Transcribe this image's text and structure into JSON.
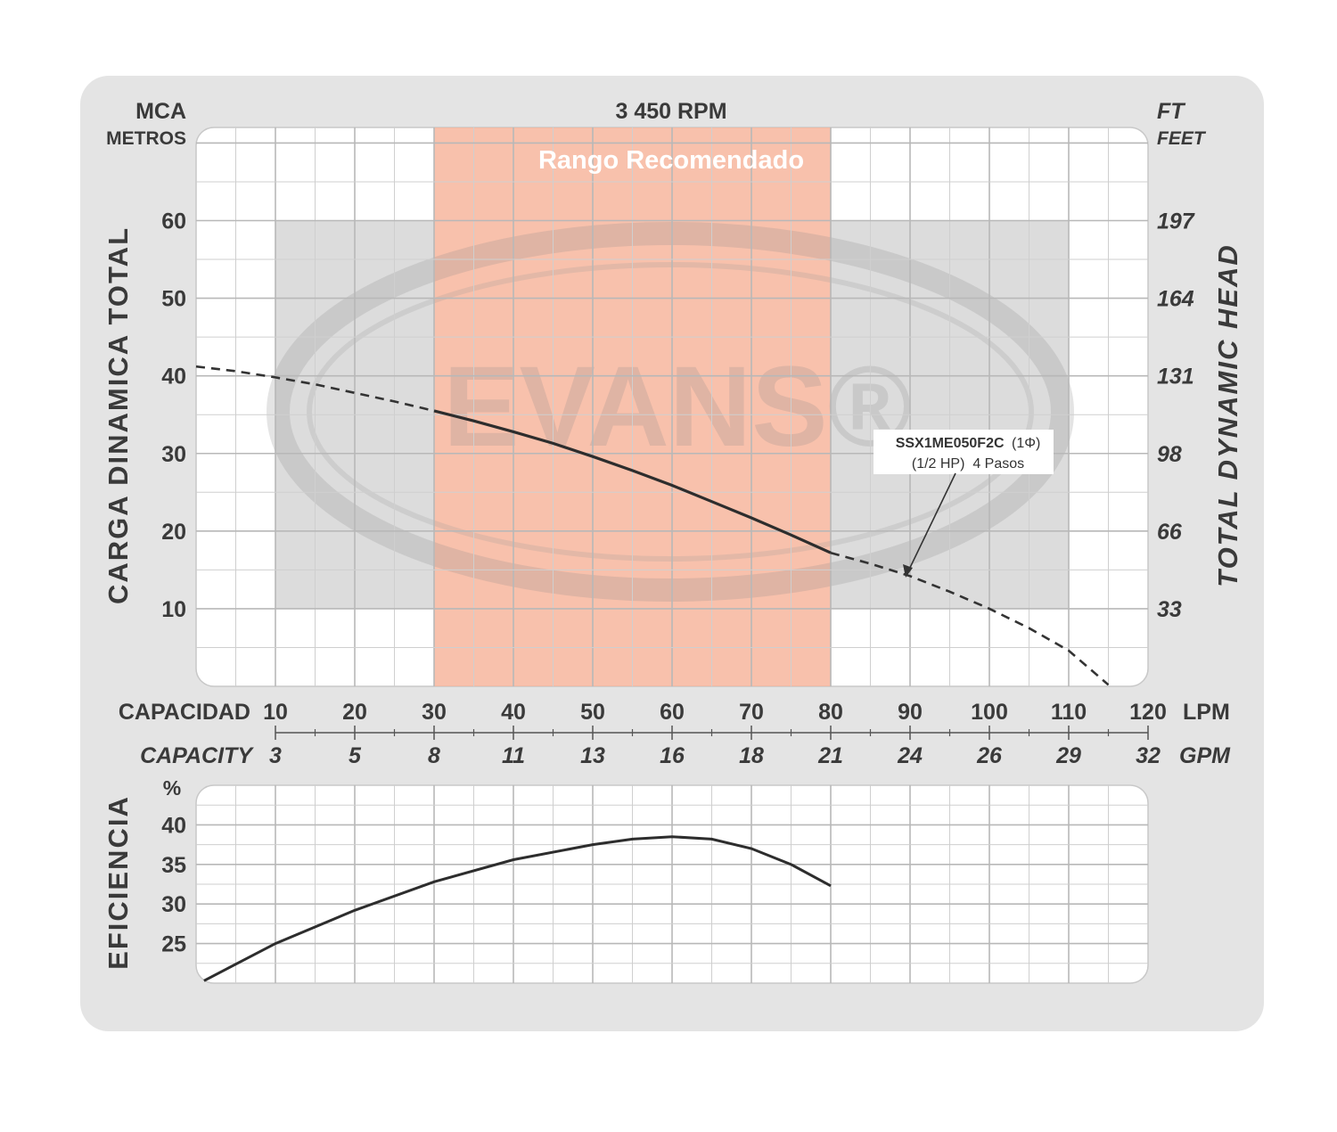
{
  "chart_data": [
    {
      "type": "line",
      "title": "3 450 RPM",
      "left_unit": "MCA",
      "left_unit_sub": "METROS",
      "right_unit": "FT",
      "right_unit_sub": "FEET",
      "ylabel": "CARGA DINAMICA TOTAL",
      "ylabel_right": "TOTAL DYNAMIC HEAD",
      "ylim": [
        0,
        72
      ],
      "y_ticks": [
        10,
        20,
        30,
        40,
        50,
        60
      ],
      "y_ticks_right": [
        "33",
        "66",
        "98",
        "131",
        "164",
        "197"
      ],
      "xlim": [
        0,
        120
      ],
      "x_ticks": [
        10,
        20,
        30,
        40,
        50,
        60,
        70,
        80,
        90,
        100,
        110,
        120
      ],
      "x_unit": "LPM",
      "xlabel": "CAPACIDAD",
      "xlabel_secondary": "CAPACITY",
      "x_ticks_secondary": [
        "3",
        "5",
        "8",
        "11",
        "13",
        "16",
        "18",
        "21",
        "24",
        "26",
        "29",
        "32"
      ],
      "x_unit_secondary": "GPM",
      "recommended_range": {
        "label": "Rango Recomendado",
        "x": [
          30,
          80
        ]
      },
      "grid": true,
      "watermark": "EVANS®",
      "annotation": {
        "model": "SSX1ME050F2C",
        "phase": "(1Φ)",
        "detail": "(1/2 HP)  4 Pasos",
        "points_to": [
          90,
          14.5
        ]
      },
      "series": [
        {
          "x": [
            0,
            5,
            10,
            15,
            20,
            25,
            30,
            35,
            40,
            45,
            50,
            55,
            60,
            65,
            70,
            75,
            80,
            85,
            90,
            95,
            100,
            105,
            110,
            115
          ],
          "y": [
            41.2,
            40.6,
            39.8,
            38.9,
            37.8,
            36.7,
            35.5,
            34.2,
            32.8,
            31.3,
            29.6,
            27.8,
            25.9,
            23.8,
            21.7,
            19.5,
            17.2,
            15.8,
            14.2,
            12.2,
            10.0,
            7.5,
            4.6,
            0.2
          ],
          "solid_range": [
            30,
            80
          ]
        }
      ]
    },
    {
      "type": "line",
      "ylabel": "EFICIENCIA",
      "y_unit": "%",
      "ylim": [
        20,
        45
      ],
      "y_ticks": [
        25,
        30,
        35,
        40
      ],
      "xlim": [
        0,
        120
      ],
      "grid": true,
      "series": [
        {
          "x": [
            1,
            10,
            20,
            30,
            40,
            50,
            55,
            60,
            65,
            70,
            75,
            80
          ],
          "y": [
            20.3,
            25.0,
            29.2,
            32.8,
            35.6,
            37.5,
            38.2,
            38.5,
            38.2,
            37.0,
            35.0,
            32.3
          ]
        }
      ]
    }
  ]
}
